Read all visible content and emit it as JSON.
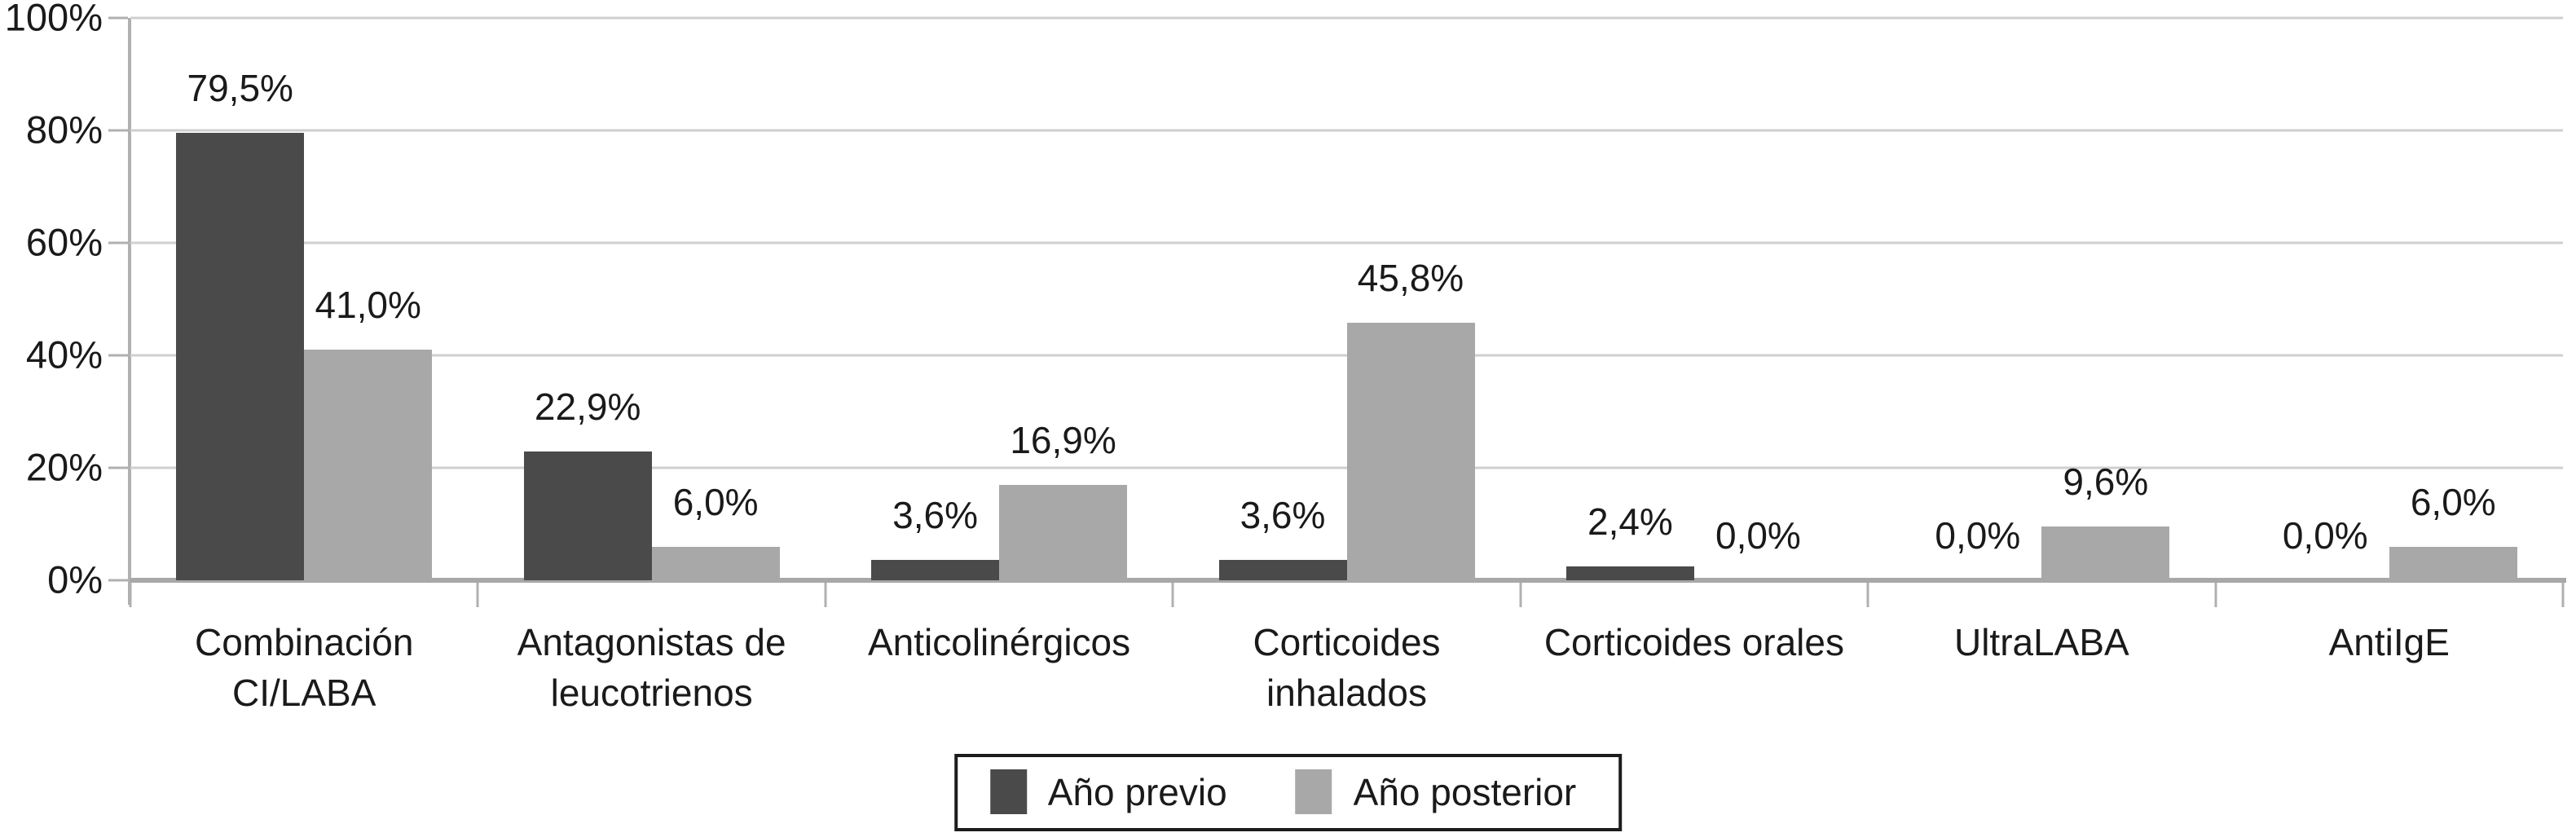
{
  "chart_data": {
    "type": "bar",
    "title": "",
    "xlabel": "",
    "ylabel": "",
    "ylim": [
      0,
      100
    ],
    "grid": true,
    "legend_position": "bottom-center",
    "ytick_values": [
      100,
      80,
      60,
      40,
      20,
      0
    ],
    "ytick_labels": [
      "100%",
      "80%",
      "60%",
      "40%",
      "20%",
      "0%"
    ],
    "categories": [
      "Combinación\nCI/LABA",
      "Antagonistas de\nleucotrienos",
      "Anticolinérgicos",
      "Corticoides\ninhalados",
      "Corticoides orales",
      "UltraLABA",
      "AntiIgE"
    ],
    "series": [
      {
        "name": "Año previo",
        "color": "#4a4a4a",
        "values": [
          79.5,
          22.9,
          3.6,
          3.6,
          2.4,
          0.0,
          0.0
        ],
        "value_labels": [
          "79,5%",
          "22,9%",
          "3,6%",
          "3,6%",
          "2,4%",
          "0,0%",
          "0,0%"
        ]
      },
      {
        "name": "Año posterior",
        "color": "#a8a8a8",
        "values": [
          41.0,
          6.0,
          16.9,
          45.8,
          0.0,
          9.6,
          6.0
        ],
        "value_labels": [
          "41,0%",
          "6,0%",
          "16,9%",
          "45,8%",
          "0,0%",
          "9,6%",
          "6,0%"
        ]
      }
    ],
    "colors": {
      "gridline": "#cfcfcf",
      "axis": "#b0b0b0",
      "baseline": "#a8a8a8",
      "text": "#1a1a1a"
    }
  }
}
